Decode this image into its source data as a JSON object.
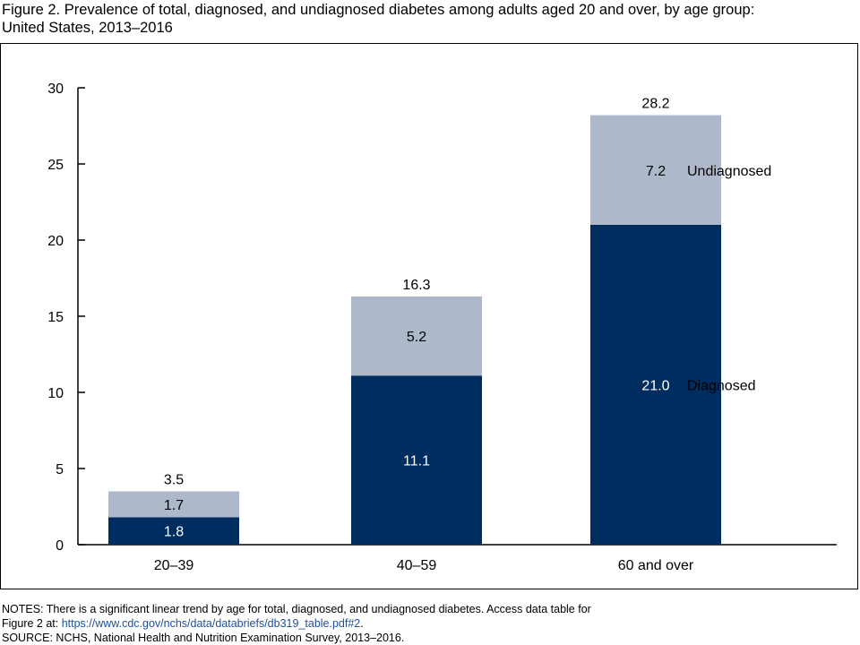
{
  "figure": {
    "title_line1": "Figure 2. Prevalence of total, diagnosed, and undiagnosed diabetes among adults aged 20 and over, by age group:",
    "title_line2": "United States, 2013–2016"
  },
  "colors": {
    "diagnosed": "#002d5f",
    "undiagnosed": "#adb9ca",
    "axis": "#000000"
  },
  "chart_data": {
    "type": "bar",
    "stacked": true,
    "categories": [
      "20–39",
      "40–59",
      "60 and over"
    ],
    "series": [
      {
        "name": "Diagnosed",
        "values": [
          1.8,
          11.1,
          21.0
        ],
        "labels": [
          "1.8",
          "11.1",
          "21.0"
        ],
        "color": "#002d5f",
        "label_color": "#000000"
      },
      {
        "name": "Undiagnosed",
        "values": [
          1.7,
          5.2,
          7.2
        ],
        "labels": [
          "1.7",
          "5.2",
          "7.2"
        ],
        "color": "#adb9ca",
        "label_color": "#000000"
      }
    ],
    "totals": [
      3.5,
      16.3,
      28.2
    ],
    "total_labels": [
      "3.5",
      "16.3",
      "28.2"
    ],
    "ylim": [
      0,
      30
    ],
    "yticks": [
      0,
      5,
      10,
      15,
      20,
      25,
      30
    ],
    "ytick_labels": [
      "0",
      "5",
      "10",
      "15",
      "20",
      "25",
      "30"
    ],
    "grid": false,
    "legend": "inline-right-of-last-bar",
    "legend_labels": {
      "diagnosed": "Diagnosed",
      "undiagnosed": "Undiagnosed"
    }
  },
  "notes": {
    "line1": "NOTES: There is a significant linear trend by age for total, diagnosed, and undiagnosed diabetes. Access data table for",
    "line2_prefix": "Figure 2 at: ",
    "link": "https://www.cdc.gov/nchs/data/databriefs/db319_table.pdf#2",
    "line2_suffix": ".",
    "source": "SOURCE: NCHS, National Health and Nutrition Examination Survey, 2013–2016."
  }
}
